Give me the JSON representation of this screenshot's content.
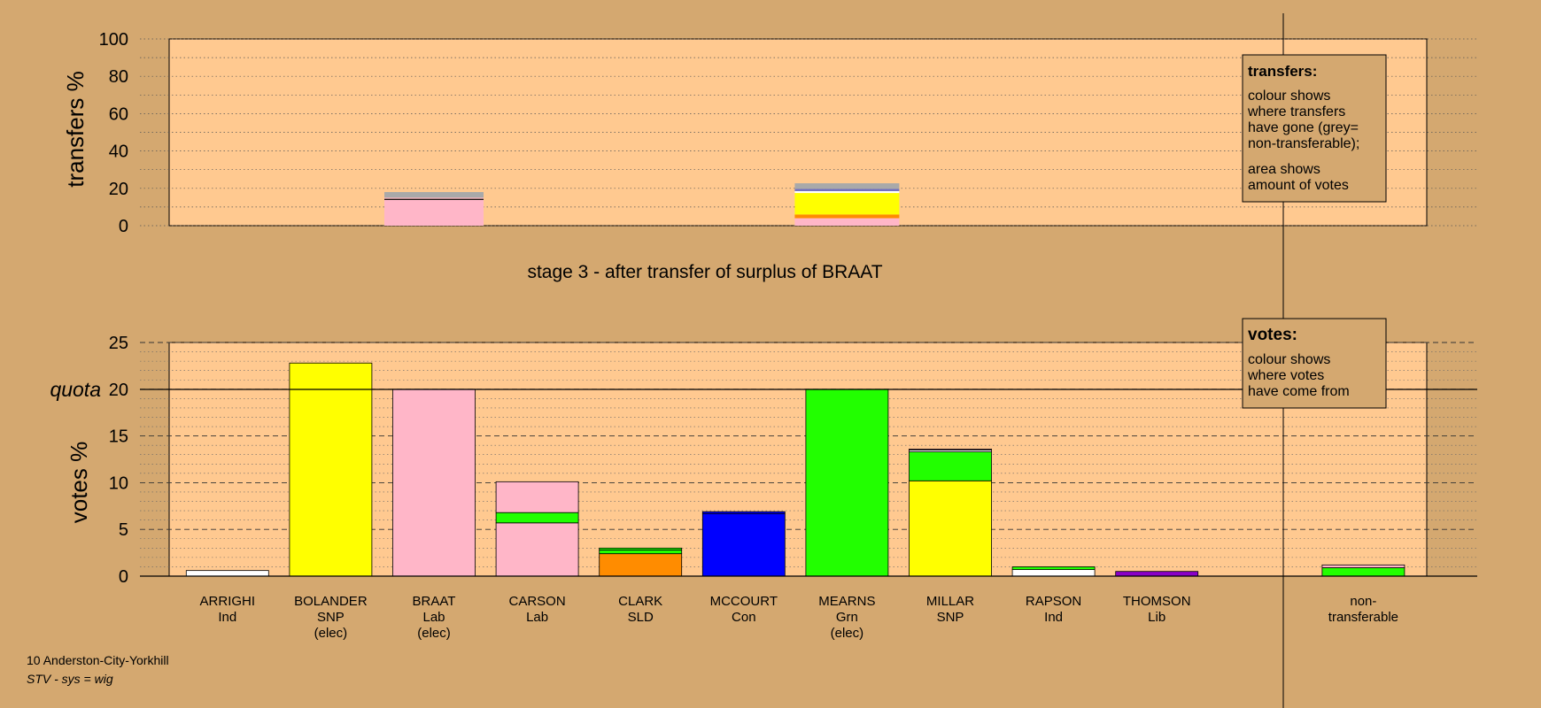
{
  "chart_data": [
    {
      "type": "bar",
      "ylabel": "transfers %",
      "ylim": [
        0,
        100
      ],
      "yticks": [
        0,
        20,
        40,
        60,
        80,
        100
      ],
      "title": "stage 3 - after transfer of surplus of BRAAT",
      "legend": {
        "title": "transfers:",
        "lines": [
          "colour shows",
          "where transfers",
          "have gone (grey=",
          "non-transferable);"
        ],
        "lines2": [
          "area shows",
          "amount of votes"
        ],
        "position": "top-right"
      },
      "bars": [
        {
          "name": "BRAAT",
          "segments": [
            {
              "color": "#ffb6c8",
              "value": 13.8
            },
            {
              "color": "#000000",
              "value": 0.6
            },
            {
              "color": "#ffb6c8",
              "value": 0.6
            },
            {
              "color": "#a9a9a9",
              "value": 3.0
            }
          ]
        },
        {
          "name": "MEARNS",
          "segments": [
            {
              "color": "#ffb6c8",
              "value": 4.0
            },
            {
              "color": "#ff8c00",
              "value": 2.0
            },
            {
              "color": "#ffff00",
              "value": 11.5
            },
            {
              "color": "#ffffff",
              "value": 1.0
            },
            {
              "color": "#7070c0",
              "value": 1.2
            },
            {
              "color": "#a9a9a9",
              "value": 3.0
            }
          ]
        }
      ]
    },
    {
      "type": "bar",
      "ylabel": "votes %",
      "ylim": [
        0,
        25
      ],
      "yticks": [
        0,
        5,
        10,
        15,
        20,
        25
      ],
      "quota": {
        "label": "quota",
        "value": 20
      },
      "legend": {
        "title": "votes:",
        "lines": [
          "colour shows",
          "where votes",
          "have come from"
        ],
        "position": "top-right"
      },
      "categories": [
        {
          "name": "ARRIGHI",
          "party": "Ind",
          "note": ""
        },
        {
          "name": "BOLANDER",
          "party": "SNP",
          "note": "(elec)"
        },
        {
          "name": "BRAAT",
          "party": "Lab",
          "note": "(elec)"
        },
        {
          "name": "CARSON",
          "party": "Lab",
          "note": ""
        },
        {
          "name": "CLARK",
          "party": "SLD",
          "note": ""
        },
        {
          "name": "MCCOURT",
          "party": "Con",
          "note": ""
        },
        {
          "name": "MEARNS",
          "party": "Grn",
          "note": "(elec)"
        },
        {
          "name": "MILLAR",
          "party": "SNP",
          "note": ""
        },
        {
          "name": "RAPSON",
          "party": "Ind",
          "note": ""
        },
        {
          "name": "THOMSON",
          "party": "Lib",
          "note": ""
        },
        {
          "name": "",
          "party": "",
          "note": ""
        },
        {
          "name": "non-",
          "party": "transferable",
          "note": ""
        }
      ],
      "stacks": [
        [
          {
            "color": "#ffffff",
            "value": 0.6
          }
        ],
        [
          {
            "color": "#ffff00",
            "value": 22.8
          }
        ],
        [
          {
            "color": "#ffb6c8",
            "value": 20.0
          }
        ],
        [
          {
            "color": "#ffb6c8",
            "value": 5.7
          },
          {
            "color": "#22ff00",
            "value": 1.1
          },
          {
            "color": "#ffb6c8",
            "value": 3.3
          }
        ],
        [
          {
            "color": "#ff8c00",
            "value": 2.4
          },
          {
            "color": "#22ff00",
            "value": 0.4
          },
          {
            "color": "#22ff00",
            "value": 0.2
          }
        ],
        [
          {
            "color": "#0000ff",
            "value": 6.7
          },
          {
            "color": "#0000ff",
            "value": 0.2
          }
        ],
        [
          {
            "color": "#22ff00",
            "value": 20.0
          }
        ],
        [
          {
            "color": "#ffff00",
            "value": 10.2
          },
          {
            "color": "#22ff00",
            "value": 3.1
          },
          {
            "color": "#ffffff",
            "value": 0.2
          },
          {
            "color": "#ffb6c8",
            "value": 0.1
          }
        ],
        [
          {
            "color": "#ffffff",
            "value": 0.7
          },
          {
            "color": "#22ff00",
            "value": 0.3
          }
        ],
        [
          {
            "color": "#8a00c8",
            "value": 0.5
          }
        ],
        [],
        [
          {
            "color": "#22ff00",
            "value": 0.9
          },
          {
            "color": "#ffb6c8",
            "value": 0.3
          }
        ]
      ]
    }
  ],
  "footer": {
    "line1": "10 Anderston-City-Yorkhill",
    "line2": "STV - sys = wig"
  }
}
